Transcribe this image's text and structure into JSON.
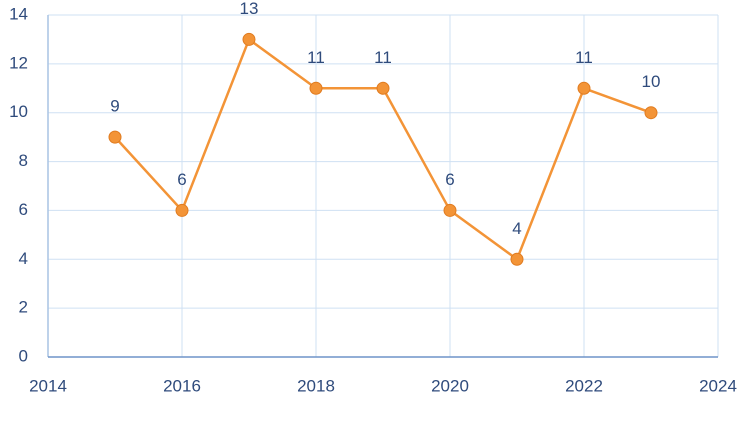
{
  "chart_data": {
    "type": "line",
    "x": [
      2015,
      2016,
      2017,
      2018,
      2019,
      2020,
      2021,
      2022,
      2023
    ],
    "values": [
      9,
      6,
      13,
      11,
      11,
      6,
      4,
      11,
      10
    ],
    "color": "#f39437",
    "xlim": [
      2014,
      2024
    ],
    "xticks": [
      2014,
      2016,
      2018,
      2020,
      2022,
      2024
    ],
    "ylim": [
      0,
      14
    ],
    "yticks": [
      0,
      2,
      4,
      6,
      8,
      10,
      12,
      14
    ],
    "grid": true
  }
}
